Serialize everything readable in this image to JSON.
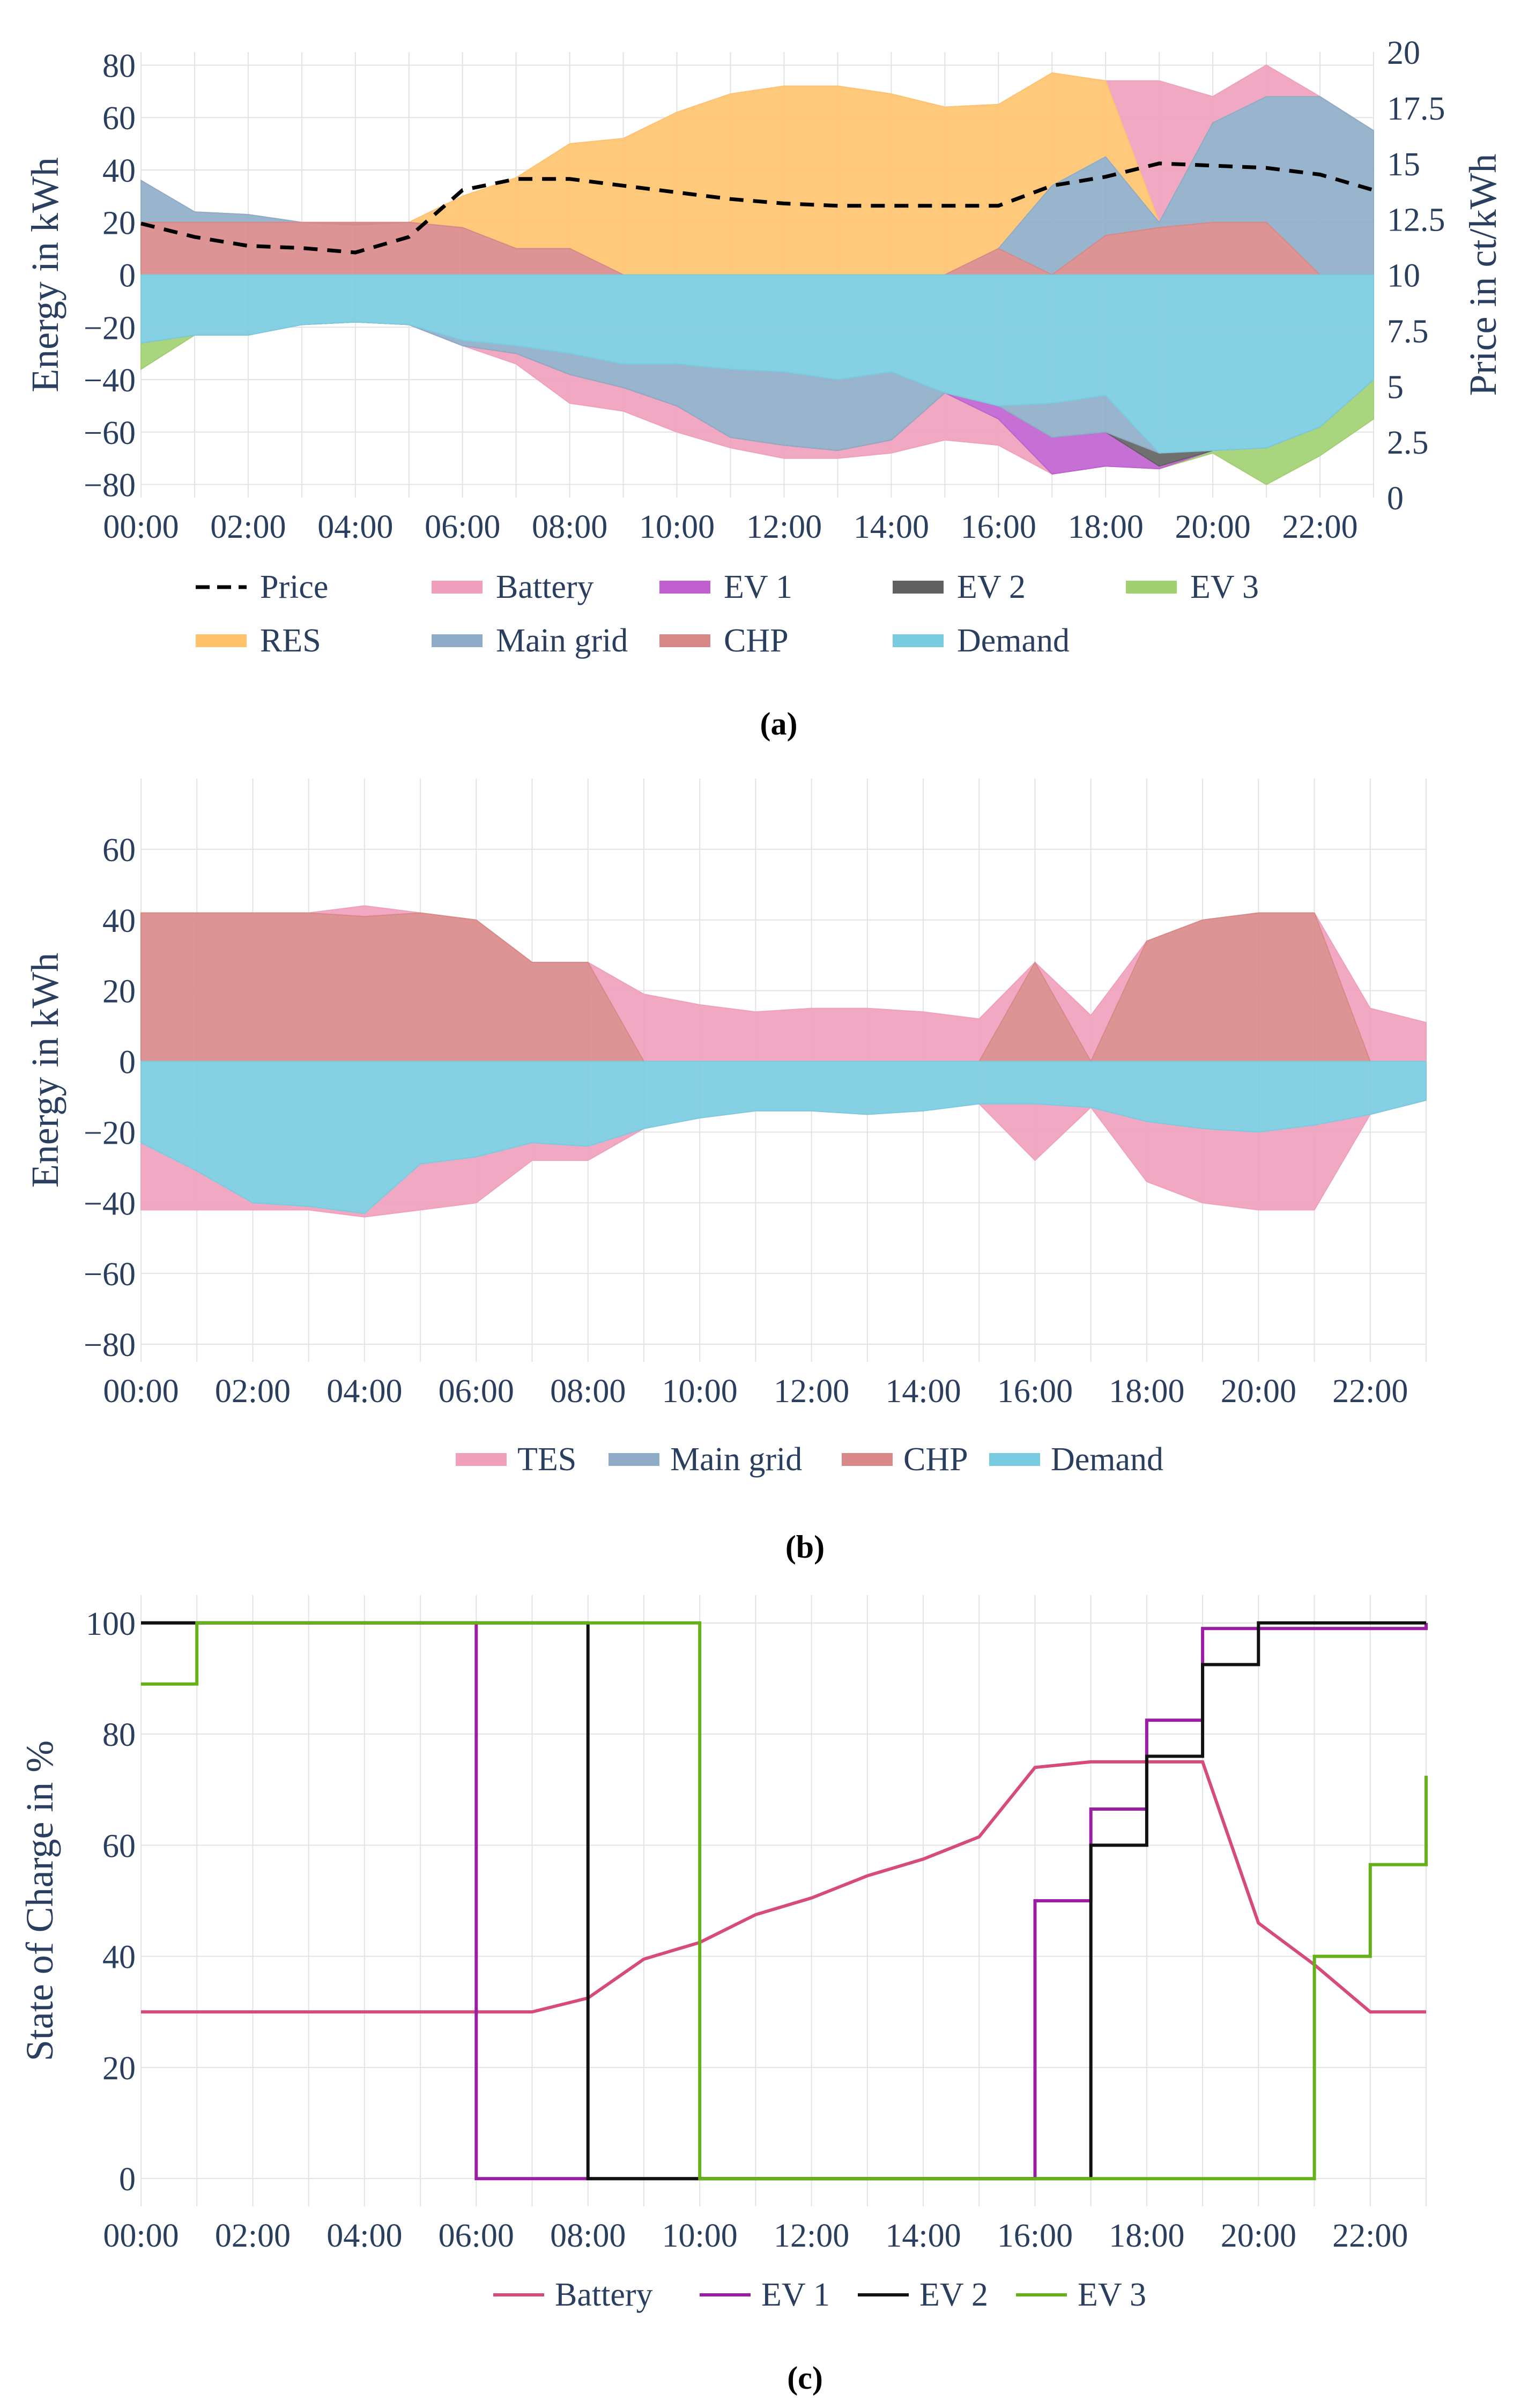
{
  "colors": {
    "price": "#000000",
    "battery": "#f0a0bc",
    "ev1": "#c060d0",
    "ev2": "#606060",
    "ev3": "#a0d070",
    "res": "#ffc36e",
    "main_grid": "#8eacc8",
    "chp": "#d98888",
    "demand": "#79cbe0",
    "tes": "#f0a0bc",
    "soc_battery": "#d64a7e",
    "soc_ev1": "#9b1da6",
    "soc_ev2": "#111111",
    "soc_ev3": "#66b01a"
  },
  "charts": {
    "a": {
      "caption": "(a)",
      "ylabel": "Energy in kWh",
      "y2label": "Price in ct/kWh",
      "y_ticks": [
        "80",
        "60",
        "40",
        "20",
        "0",
        "−20",
        "−40",
        "−60",
        "−80"
      ],
      "y2_ticks": [
        "20",
        "17.5",
        "15",
        "12.5",
        "10",
        "7.5",
        "5",
        "2.5",
        "0"
      ],
      "x_ticks": [
        "00:00",
        "02:00",
        "04:00",
        "06:00",
        "08:00",
        "10:00",
        "12:00",
        "14:00",
        "16:00",
        "18:00",
        "20:00",
        "22:00"
      ],
      "legend": [
        "Price",
        "Battery",
        "EV 1",
        "EV 2",
        "EV 3",
        "RES",
        "Main grid",
        "CHP",
        "Demand"
      ]
    },
    "b": {
      "caption": "(b)",
      "ylabel": "Energy in kWh",
      "y_ticks": [
        "60",
        "40",
        "20",
        "0",
        "−20",
        "−40",
        "−60",
        "−80"
      ],
      "x_ticks": [
        "00:00",
        "02:00",
        "04:00",
        "06:00",
        "08:00",
        "10:00",
        "12:00",
        "14:00",
        "16:00",
        "18:00",
        "20:00",
        "22:00"
      ],
      "legend": [
        "TES",
        "Main grid",
        "CHP",
        "Demand"
      ]
    },
    "c": {
      "caption": "(c)",
      "ylabel": "State of Charge in %",
      "y_ticks": [
        "100",
        "80",
        "60",
        "40",
        "20",
        "0"
      ],
      "x_ticks": [
        "00:00",
        "02:00",
        "04:00",
        "06:00",
        "08:00",
        "10:00",
        "12:00",
        "14:00",
        "16:00",
        "18:00",
        "20:00",
        "22:00"
      ],
      "legend": [
        "Battery",
        "EV 1",
        "EV 2",
        "EV 3"
      ]
    }
  },
  "chart_data": [
    {
      "type": "area",
      "id": "a",
      "x_hours": [
        0,
        1,
        2,
        3,
        4,
        5,
        6,
        7,
        8,
        9,
        10,
        11,
        12,
        13,
        14,
        15,
        16,
        17,
        18,
        19,
        20,
        21,
        22,
        23
      ],
      "ylabel": "Energy in kWh",
      "ylim": [
        -85,
        85
      ],
      "y2label": "Price in ct/kWh",
      "y2lim": [
        0,
        20
      ],
      "series": [
        {
          "name": "CHP",
          "values": [
            20,
            20,
            20,
            20,
            20,
            20,
            18,
            10,
            10,
            0,
            0,
            0,
            0,
            0,
            0,
            0,
            10,
            0,
            15,
            18,
            20,
            20,
            0,
            0
          ]
        },
        {
          "name": "Main grid",
          "values": [
            36,
            24,
            23,
            20,
            19,
            20,
            18,
            10,
            10,
            0,
            0,
            0,
            0,
            0,
            0,
            0,
            10,
            34,
            45,
            20,
            58,
            68,
            68,
            55
          ]
        },
        {
          "name": "RES",
          "values": [
            36,
            24,
            23,
            20,
            19,
            20,
            30,
            37,
            50,
            52,
            62,
            69,
            72,
            72,
            69,
            64,
            65,
            77,
            74,
            20,
            58,
            68,
            68,
            55
          ]
        },
        {
          "name": "Battery",
          "values": [
            36,
            24,
            23,
            20,
            19,
            20,
            30,
            37,
            50,
            52,
            62,
            69,
            72,
            72,
            69,
            64,
            65,
            77,
            74,
            74,
            68,
            80,
            68,
            55
          ]
        },
        {
          "name": "Demand",
          "values": [
            -26,
            -23,
            -23,
            -19,
            -18,
            -19,
            -25,
            -27,
            -30,
            -34,
            -34,
            -36,
            -37,
            -40,
            -37,
            -45,
            -50,
            -49,
            -46,
            -68,
            -67,
            -66,
            -58,
            -40
          ]
        },
        {
          "name": "Main grid (import)",
          "values": [
            -26,
            -23,
            -23,
            -19,
            -18,
            -19,
            -27,
            -30,
            -38,
            -43,
            -50,
            -62,
            -65,
            -67,
            -63,
            -45,
            -50,
            -62,
            -60,
            -68,
            -67,
            -66,
            -58,
            -40
          ]
        },
        {
          "name": "EV 2",
          "values": [
            -26,
            -23,
            -23,
            -19,
            -18,
            -19,
            -27,
            -30,
            -38,
            -43,
            -50,
            -62,
            -65,
            -67,
            -63,
            -45,
            -50,
            -62,
            -60,
            -73,
            -67,
            -66,
            -58,
            -40
          ]
        },
        {
          "name": "EV 1",
          "values": [
            -26,
            -23,
            -23,
            -19,
            -18,
            -19,
            -27,
            -30,
            -38,
            -43,
            -50,
            -62,
            -65,
            -67,
            -63,
            -45,
            -55,
            -76,
            -73,
            -74,
            -67,
            -66,
            -58,
            -40
          ]
        },
        {
          "name": "EV 3",
          "values": [
            -36,
            -23,
            -23,
            -19,
            -18,
            -19,
            -27,
            -30,
            -38,
            -43,
            -50,
            -62,
            -65,
            -67,
            -63,
            -45,
            -55,
            -76,
            -73,
            -74,
            -68,
            -80,
            -69,
            -55
          ]
        },
        {
          "name": "Battery (charge)",
          "values": [
            -36,
            -23,
            -23,
            -19,
            -18,
            -19,
            -27,
            -34,
            -49,
            -52,
            -60,
            -66,
            -70,
            -70,
            -68,
            -63,
            -65,
            -76,
            -73,
            -74,
            -68,
            -80,
            -69,
            -55
          ]
        },
        {
          "name": "Price",
          "axis": "y2",
          "values": [
            12.3,
            11.7,
            11.3,
            11.2,
            11.0,
            11.7,
            13.8,
            14.3,
            14.3,
            14.0,
            13.7,
            13.4,
            13.2,
            13.1,
            13.1,
            13.1,
            13.1,
            14.0,
            14.4,
            15.0,
            14.9,
            14.8,
            14.5,
            13.8
          ]
        }
      ]
    },
    {
      "type": "area",
      "id": "b",
      "x_hours": [
        0,
        1,
        2,
        3,
        4,
        5,
        6,
        7,
        8,
        9,
        10,
        11,
        12,
        13,
        14,
        15,
        16,
        17,
        18,
        19,
        20,
        21,
        22,
        23
      ],
      "ylabel": "Energy in kWh",
      "ylim": [
        -85,
        80
      ],
      "series": [
        {
          "name": "TES",
          "values": [
            42,
            42,
            42,
            42,
            44,
            42,
            40,
            28,
            28,
            19,
            16,
            14,
            15,
            15,
            14,
            12,
            28,
            13,
            34,
            40,
            42,
            42,
            15,
            11
          ]
        },
        {
          "name": "CHP",
          "values": [
            42,
            42,
            42,
            42,
            41,
            42,
            40,
            28,
            28,
            0,
            0,
            0,
            0,
            0,
            0,
            0,
            28,
            0,
            34,
            40,
            42,
            42,
            0,
            0
          ]
        },
        {
          "name": "Demand",
          "values": [
            -23,
            -31,
            -40,
            -41,
            -43,
            -29,
            -27,
            -23,
            -24,
            -19,
            -16,
            -14,
            -14,
            -15,
            -14,
            -12,
            -12,
            -13,
            -17,
            -19,
            -20,
            -18,
            -15,
            -11
          ]
        },
        {
          "name": "TES (charge)",
          "values": [
            -42,
            -42,
            -42,
            -42,
            -44,
            -42,
            -40,
            -28,
            -28,
            -19,
            -16,
            -14,
            -14,
            -15,
            -14,
            -12,
            -28,
            -13,
            -34,
            -40,
            -42,
            -42,
            -15,
            -11
          ]
        }
      ]
    },
    {
      "type": "line",
      "id": "c",
      "ylabel": "State of Charge in %",
      "ylim": [
        -5,
        105
      ],
      "series": [
        {
          "name": "Battery",
          "shape": "linear",
          "x": [
            0,
            6,
            7,
            8,
            9,
            10,
            11,
            12,
            13,
            14,
            15,
            16,
            17,
            18,
            19,
            20,
            21,
            22,
            23
          ],
          "values": [
            30,
            30,
            30,
            32.5,
            39.5,
            42.5,
            47.5,
            50.5,
            54.5,
            57.5,
            61.5,
            74,
            75,
            75,
            75,
            46,
            38.5,
            30,
            30
          ]
        },
        {
          "name": "EV 1",
          "shape": "step",
          "x": [
            0,
            6,
            16,
            17,
            18,
            19,
            23
          ],
          "values": [
            100,
            0,
            50,
            66.5,
            82.5,
            99,
            100
          ]
        },
        {
          "name": "EV 2",
          "shape": "step",
          "x": [
            0,
            8,
            17,
            18,
            19,
            20,
            23
          ],
          "values": [
            100,
            0,
            60,
            76,
            92.5,
            100,
            100
          ]
        },
        {
          "name": "EV 3",
          "shape": "step",
          "x": [
            0,
            1,
            10,
            21,
            22,
            23
          ],
          "values": [
            89,
            100,
            0,
            40,
            56.5,
            72.5
          ]
        }
      ]
    }
  ]
}
